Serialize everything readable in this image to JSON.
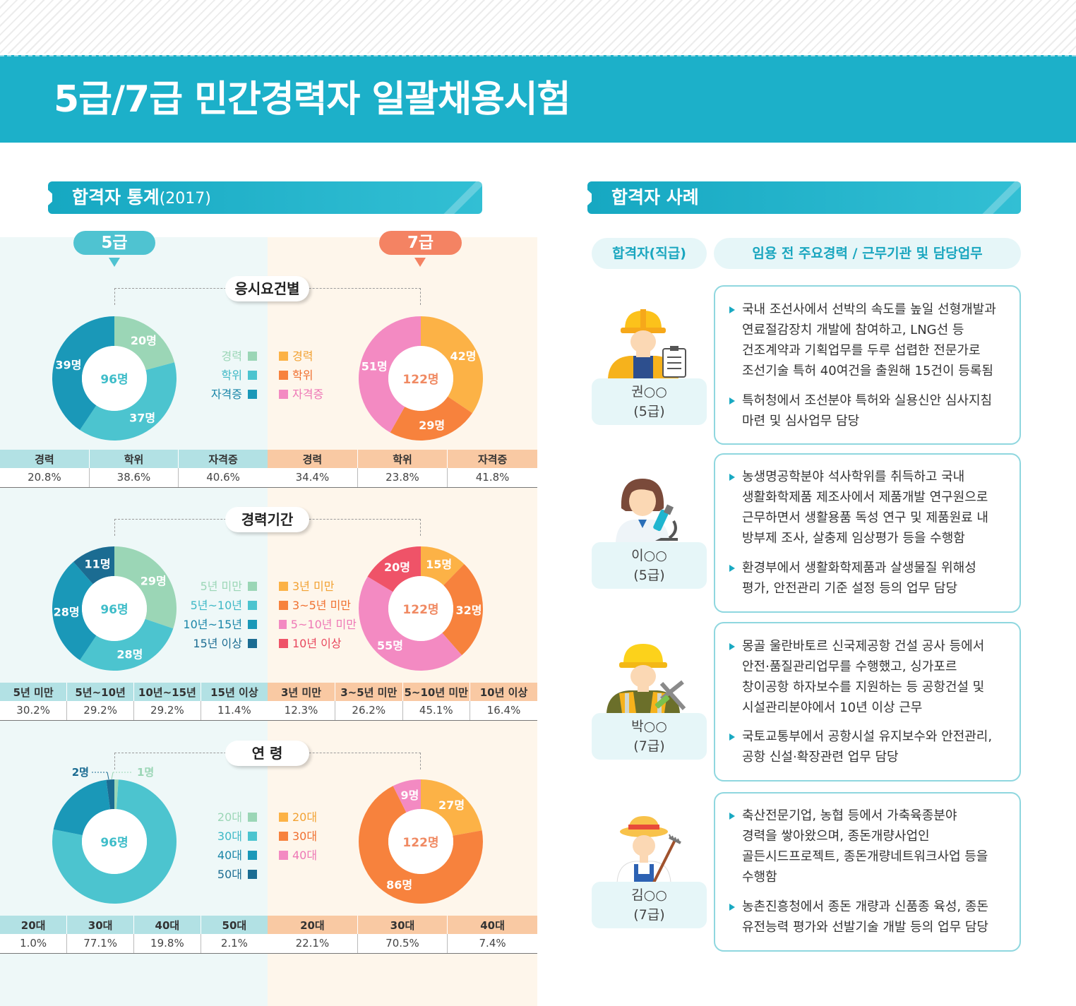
{
  "header": {
    "title": "5급/7급 민간경력자 일괄채용시험"
  },
  "stats_section": {
    "title": "합격자 통계",
    "year": "(2017)"
  },
  "cases_section": {
    "title": "합격자 사례"
  },
  "grades": {
    "g5": "5급",
    "g7": "7급"
  },
  "colors": {
    "brand": "#1cb0c9",
    "mint_panel": "#eef8f8",
    "peach_panel": "#fef6eb"
  },
  "chart_data": [
    {
      "id": "req5",
      "type": "pie",
      "section": "응시요건별",
      "grade": "5급",
      "total_label": "96명",
      "start_angle": 0,
      "labels_on_slices": true,
      "slices": [
        {
          "name": "경력",
          "value": 20,
          "label": "20명",
          "color": "#9bd6b6"
        },
        {
          "name": "학위",
          "value": 37,
          "label": "37명",
          "color": "#4cc4cf"
        },
        {
          "name": "자격증",
          "value": 39,
          "label": "39명",
          "color": "#1a98b8"
        }
      ]
    },
    {
      "id": "req7",
      "type": "pie",
      "section": "응시요건별",
      "grade": "7급",
      "total_label": "122명",
      "start_angle": 0,
      "labels_on_slices": true,
      "slices": [
        {
          "name": "경력",
          "value": 42,
          "label": "42명",
          "color": "#fcb246"
        },
        {
          "name": "학위",
          "value": 29,
          "label": "29명",
          "color": "#f7823d"
        },
        {
          "name": "자격증",
          "value": 51,
          "label": "51명",
          "color": "#f38ac2"
        }
      ]
    },
    {
      "id": "exp5",
      "type": "pie",
      "section": "경력기간",
      "grade": "5급",
      "total_label": "96명",
      "start_angle": 0,
      "labels_on_slices": true,
      "slices": [
        {
          "name": "5년 미만",
          "value": 29,
          "label": "29명",
          "color": "#9bd6b6"
        },
        {
          "name": "5년~10년",
          "value": 28,
          "label": "28명",
          "color": "#4cc4cf"
        },
        {
          "name": "10년~15년",
          "value": 28,
          "label": "28명",
          "color": "#1a98b8"
        },
        {
          "name": "15년 이상",
          "value": 11,
          "label": "11명",
          "color": "#1b6c92"
        }
      ]
    },
    {
      "id": "exp7",
      "type": "pie",
      "section": "경력기간",
      "grade": "7급",
      "total_label": "122명",
      "start_angle": 0,
      "labels_on_slices": true,
      "slices": [
        {
          "name": "3년 미만",
          "value": 15,
          "label": "15명",
          "color": "#fcb246"
        },
        {
          "name": "3~5년 미만",
          "value": 32,
          "label": "32명",
          "color": "#f7823d"
        },
        {
          "name": "5~10년 미만",
          "value": 55,
          "label": "55명",
          "color": "#f38ac2"
        },
        {
          "name": "10년 이상",
          "value": 20,
          "label": "20명",
          "color": "#ef5368"
        }
      ]
    },
    {
      "id": "age5",
      "type": "pie",
      "section": "연 령",
      "grade": "5급",
      "total_label": "96명",
      "start_angle": 0,
      "labels_on_slices": false,
      "slices": [
        {
          "name": "20대",
          "value": 1,
          "label": "1명",
          "color": "#9bd6b6"
        },
        {
          "name": "30대",
          "value": 74,
          "label": "74명",
          "color": "#4cc4cf"
        },
        {
          "name": "40대",
          "value": 19,
          "label": "19명",
          "color": "#1a98b8"
        },
        {
          "name": "50대",
          "value": 2,
          "label": "2명",
          "color": "#1b6c92"
        }
      ]
    },
    {
      "id": "age7",
      "type": "pie",
      "section": "연 령",
      "grade": "7급",
      "total_label": "122명",
      "start_angle": 0,
      "labels_on_slices": true,
      "slices": [
        {
          "name": "20대",
          "value": 27,
          "label": "27명",
          "color": "#fcb246"
        },
        {
          "name": "30대",
          "value": 86,
          "label": "86명",
          "color": "#f7823d"
        },
        {
          "name": "40대",
          "value": 9,
          "label": "9명",
          "color": "#f38ac2"
        }
      ]
    }
  ],
  "tables": {
    "req": {
      "g5": {
        "headers": [
          "경력",
          "학위",
          "자격증"
        ],
        "values": [
          "20.8%",
          "38.6%",
          "40.6%"
        ]
      },
      "g7": {
        "headers": [
          "경력",
          "학위",
          "자격증"
        ],
        "values": [
          "34.4%",
          "23.8%",
          "41.8%"
        ]
      }
    },
    "exp": {
      "g5": {
        "headers": [
          "5년 미만",
          "5년~10년",
          "10년~15년",
          "15년 이상"
        ],
        "values": [
          "30.2%",
          "29.2%",
          "29.2%",
          "11.4%"
        ]
      },
      "g7": {
        "headers": [
          "3년 미만",
          "3~5년 미만",
          "5~10년 미만",
          "10년 이상"
        ],
        "values": [
          "12.3%",
          "26.2%",
          "45.1%",
          "16.4%"
        ]
      }
    },
    "age": {
      "g5": {
        "headers": [
          "20대",
          "30대",
          "40대",
          "50대"
        ],
        "values": [
          "1.0%",
          "77.1%",
          "19.8%",
          "2.1%"
        ]
      },
      "g7": {
        "headers": [
          "20대",
          "30대",
          "40대"
        ],
        "values": [
          "22.1%",
          "70.5%",
          "7.4%"
        ]
      }
    }
  },
  "cases": {
    "header_person": "합격자(직급)",
    "header_career": "임용 전 주요경력 / 근무기관 및 담당업무",
    "items": [
      {
        "name": "권○○",
        "grade": "(5급)",
        "icon": "shipbuilding-engineer-icon",
        "bullets": [
          "국내 조선사에서 선박의 속도를 높일 선형개발과\n연료절감장치 개발에 참여하고, LNG선 등\n건조계약과 기획업무를 두루 섭렵한 전문가로\n조선기술 특허 40여건을 출원해 15건이 등록됨",
          "특허청에서 조선분야 특허와 실용신안 심사지침\n마련 및 심사업무 담당"
        ]
      },
      {
        "name": "이○○",
        "grade": "(5급)",
        "icon": "researcher-icon",
        "bullets": [
          "농생명공학분야 석사학위를 취득하고 국내\n생활화학제품 제조사에서 제품개발 연구원으로\n근무하면서 생활용품 독성 연구 및 제품원료 내\n방부제 조사, 살충제 임상평가 등을 수행함",
          "환경부에서 생활화학제품과 살생물질 위해성\n평가,  안전관리 기준 설정 등의 업무 담당"
        ]
      },
      {
        "name": "박○○",
        "grade": "(7급)",
        "icon": "construction-worker-icon",
        "bullets": [
          "몽골 울란바토르 신국제공항 건설 공사 등에서\n안전·품질관리업무를 수행했고, 싱가포르\n창이공항 하자보수를 지원하는 등 공항건설 및\n시설관리분야에서 10년 이상 근무",
          "국토교통부에서 공항시설 유지보수와 안전관리,\n공항 신설·확장관련 업무 담당"
        ]
      },
      {
        "name": "김○○",
        "grade": "(7급)",
        "icon": "farmer-icon",
        "bullets": [
          "축산전문기업, 농협 등에서 가축육종분야\n경력을 쌓아왔으며, 종돈개량사업인\n골든시드프로젝트, 종돈개량네트워크사업 등을\n수행함",
          "농촌진흥청에서 종돈 개량과 신품종 육성, 종돈\n유전능력 평가와 선발기술 개발 등의 업무 담당"
        ]
      }
    ]
  }
}
